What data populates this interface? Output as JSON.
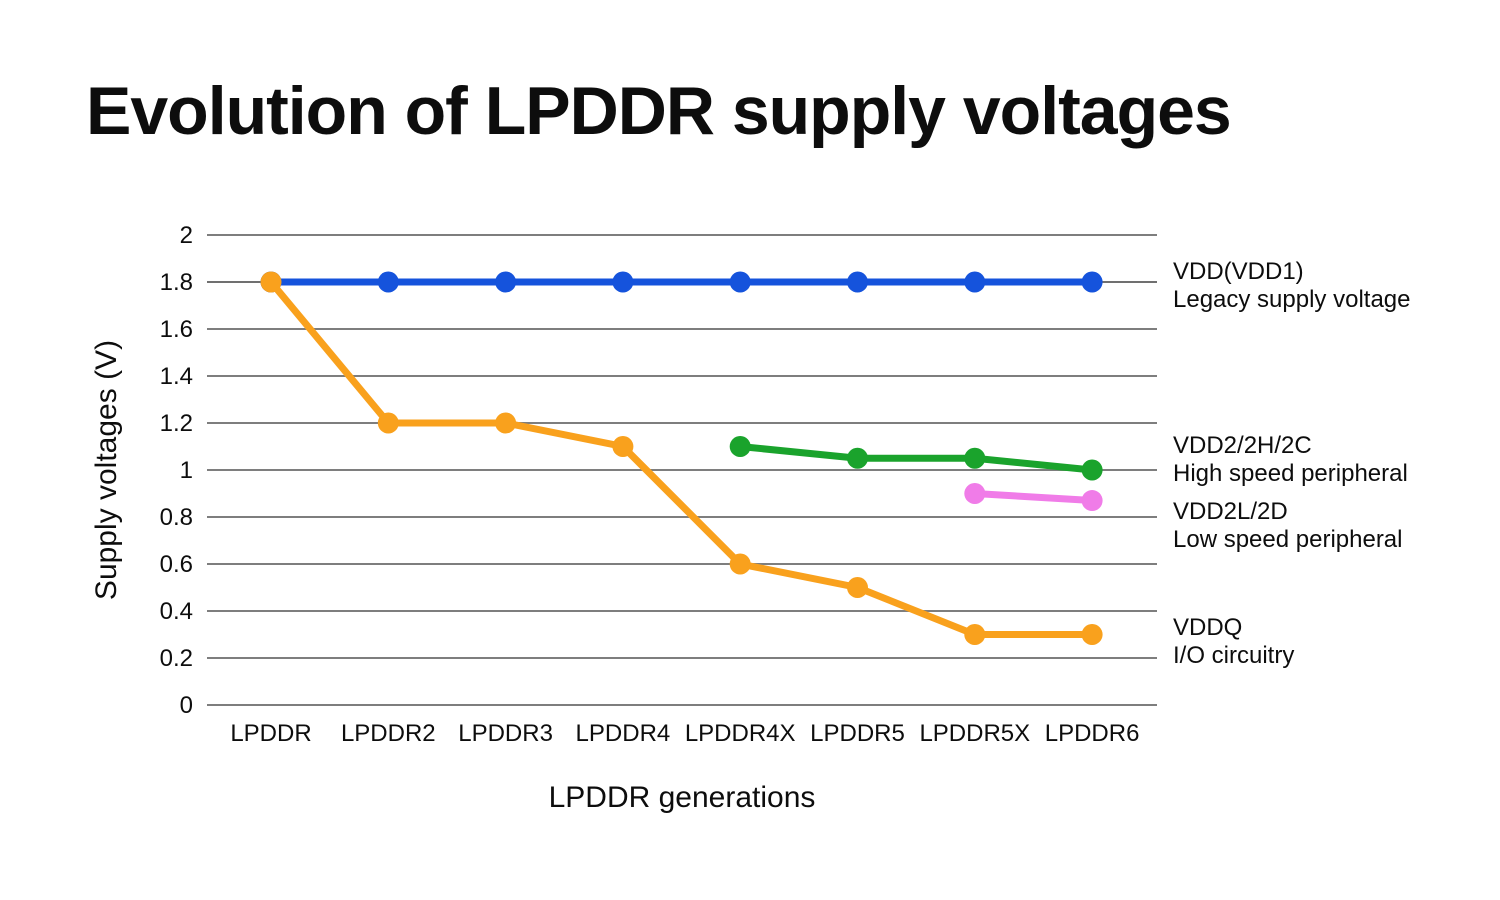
{
  "title": "Evolution of LPDDR supply voltages",
  "chart_data": {
    "type": "line",
    "title": "Evolution of LPDDR supply voltages",
    "xlabel": "LPDDR generations",
    "ylabel": "Supply voltages (V)",
    "categories": [
      "LPDDR",
      "LPDDR2",
      "LPDDR3",
      "LPDDR4",
      "LPDDR4X",
      "LPDDR5",
      "LPDDR5X",
      "LPDDR6"
    ],
    "ylim": [
      0,
      2
    ],
    "ytick_step": 0.2,
    "grid": true,
    "legend_position": "right-annotations",
    "colors": {
      "grid": "#7e7e7e",
      "grid_emphasis": "#1a1a1a",
      "text": "#0d0d0d"
    },
    "series": [
      {
        "name": "VDD(VDD1)",
        "description": "Legacy supply voltage",
        "color": "#1553dc",
        "values": [
          1.8,
          1.8,
          1.8,
          1.8,
          1.8,
          1.8,
          1.8,
          1.8
        ]
      },
      {
        "name": "VDD2/2H/2C",
        "description": "High speed peripheral",
        "color": "#1aa32c",
        "values": [
          null,
          null,
          null,
          null,
          1.1,
          1.05,
          1.05,
          1.0
        ]
      },
      {
        "name": "VDD2L/2D",
        "description": "Low speed peripheral",
        "color": "#f07ce8",
        "values": [
          null,
          null,
          null,
          null,
          null,
          null,
          0.9,
          0.87
        ]
      },
      {
        "name": "VDDQ",
        "description": "I/O circuitry",
        "color": "#f9a11d",
        "values": [
          1.8,
          1.2,
          1.2,
          1.1,
          0.6,
          0.5,
          0.3,
          0.3
        ]
      }
    ]
  }
}
